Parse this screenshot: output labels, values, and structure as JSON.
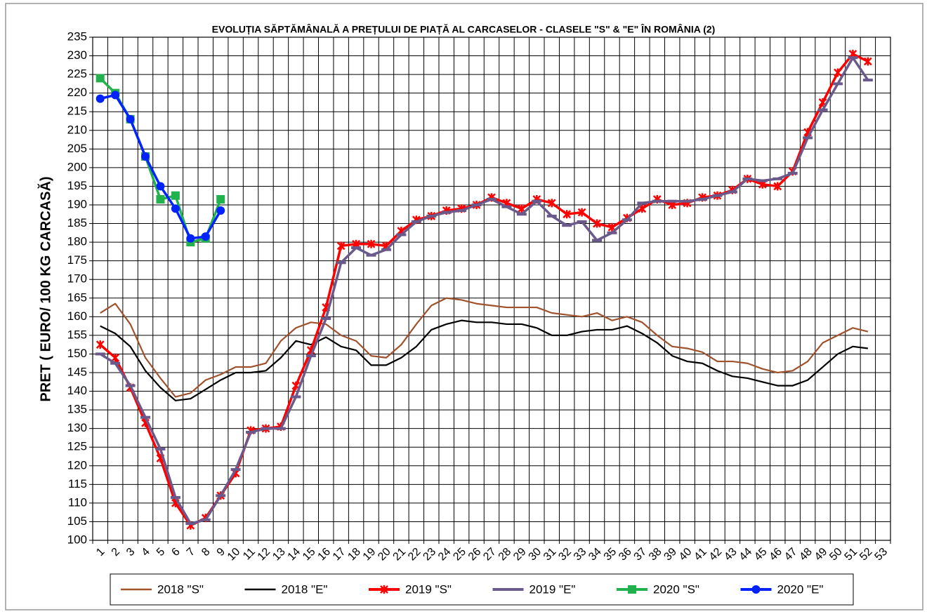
{
  "chart_data": {
    "type": "line",
    "title": "EVOLUȚIA SĂPTĂMÂNALĂ A PREȚULUI  DE PIAȚĂ  AL CARCASELOR  - CLASELE \"S\" & \"E\"  ÎN ROMÂNIA (2)",
    "y_label": "PRET ( EURO/ 100 KG CARCASĂ)",
    "categories": [
      "1",
      "2",
      "3",
      "4",
      "5",
      "6",
      "7",
      "8",
      "9",
      "10",
      "11",
      "12",
      "13",
      "14",
      "15",
      "16",
      "17",
      "18",
      "19",
      "20",
      "21",
      "22",
      "23",
      "24",
      "25",
      "26",
      "27",
      "28",
      "29",
      "30",
      "31",
      "32",
      "33",
      "34",
      "35",
      "36",
      "37",
      "38",
      "39",
      "40",
      "41",
      "42",
      "43",
      "44",
      "45",
      "46",
      "47",
      "48",
      "49",
      "50",
      "51",
      "52",
      "53"
    ],
    "ylim": [
      100,
      235
    ],
    "yticks": [
      100,
      105,
      110,
      115,
      120,
      125,
      130,
      135,
      140,
      145,
      150,
      155,
      160,
      165,
      170,
      175,
      180,
      185,
      190,
      195,
      200,
      205,
      210,
      215,
      220,
      225,
      230,
      235
    ],
    "grid": true,
    "legend": "bottom",
    "series": [
      {
        "name": "2018 \"S\"",
        "color": "#a0522d",
        "marker": "none",
        "values": [
          161,
          163.5,
          158,
          149,
          143.5,
          138.5,
          139.5,
          143,
          144.5,
          146.5,
          146.5,
          147.5,
          153.5,
          157,
          158.5,
          158,
          155,
          153.5,
          149.5,
          149,
          152.5,
          158,
          163,
          165,
          164.5,
          163.5,
          163,
          162.5,
          162.5,
          162.5,
          161,
          160.5,
          160,
          161,
          159,
          160,
          158.5,
          155,
          152,
          151.5,
          150.5,
          148,
          148,
          147.5,
          146,
          145,
          145.5,
          148,
          153,
          155,
          157,
          156,
          null
        ]
      },
      {
        "name": "2018 \"E\"",
        "color": "#000000",
        "marker": "none",
        "values": [
          157.5,
          155.5,
          152,
          145.5,
          141,
          137.5,
          138,
          140.5,
          143,
          145,
          145,
          145.5,
          149,
          153.5,
          152.5,
          154.5,
          152,
          151,
          147,
          147,
          149,
          152,
          156.5,
          158,
          159,
          158.5,
          158.5,
          158,
          158,
          157,
          155,
          155,
          156,
          156.5,
          156.5,
          157.5,
          155.5,
          153,
          149.5,
          148,
          147.5,
          145.5,
          144,
          143.5,
          142.5,
          141.5,
          141.5,
          143,
          146.5,
          150,
          152,
          151.5,
          null
        ]
      },
      {
        "name": "2019 \"S\"",
        "color": "#ff0000",
        "marker": "x",
        "values": [
          152.5,
          149,
          141,
          131.5,
          122,
          110,
          104,
          106,
          112,
          118,
          129.5,
          130,
          130.5,
          141.5,
          151,
          162.5,
          179,
          179.5,
          179.5,
          179,
          183,
          186,
          187,
          188.5,
          189,
          190,
          192,
          190.5,
          189,
          191.5,
          190.5,
          187.5,
          188,
          185,
          184,
          186.5,
          189,
          191.5,
          190,
          190.5,
          192,
          192.5,
          194,
          197,
          195.5,
          195,
          199,
          209.5,
          217.5,
          225.5,
          230.5,
          228.5,
          null
        ]
      },
      {
        "name": "2019 \"E\"",
        "color": "#6a5a8c",
        "marker": "dash",
        "values": [
          150,
          147.5,
          141.5,
          133,
          124.5,
          111.5,
          104.5,
          105.5,
          112,
          119,
          129,
          130,
          130,
          138.5,
          149.5,
          159.5,
          174.5,
          178.5,
          176.5,
          178,
          182,
          185.5,
          187,
          188,
          188.5,
          190,
          191.5,
          189.5,
          187.5,
          191,
          187,
          184.5,
          185.5,
          180.5,
          182.5,
          186,
          190.5,
          191,
          191,
          191,
          191.5,
          192.5,
          193.5,
          197,
          196.5,
          197,
          198.5,
          208,
          215.5,
          222.5,
          229.5,
          223.5,
          null
        ]
      },
      {
        "name": "2020 \"S\"",
        "color": "#22b14c",
        "marker": "square",
        "values": [
          224,
          220,
          213,
          203,
          191.5,
          192.5,
          180,
          181,
          191.5,
          null,
          null,
          null,
          null,
          null,
          null,
          null,
          null,
          null,
          null,
          null,
          null,
          null,
          null,
          null,
          null,
          null,
          null,
          null,
          null,
          null,
          null,
          null,
          null,
          null,
          null,
          null,
          null,
          null,
          null,
          null,
          null,
          null,
          null,
          null,
          null,
          null,
          null,
          null,
          null,
          null,
          null,
          null,
          null
        ]
      },
      {
        "name": "2020 \"E\"",
        "color": "#0022ff",
        "marker": "circle",
        "values": [
          218.5,
          219.5,
          213,
          203,
          195,
          189,
          181,
          181.5,
          188.5,
          null,
          null,
          null,
          null,
          null,
          null,
          null,
          null,
          null,
          null,
          null,
          null,
          null,
          null,
          null,
          null,
          null,
          null,
          null,
          null,
          null,
          null,
          null,
          null,
          null,
          null,
          null,
          null,
          null,
          null,
          null,
          null,
          null,
          null,
          null,
          null,
          null,
          null,
          null,
          null,
          null,
          null,
          null,
          null
        ]
      }
    ]
  }
}
